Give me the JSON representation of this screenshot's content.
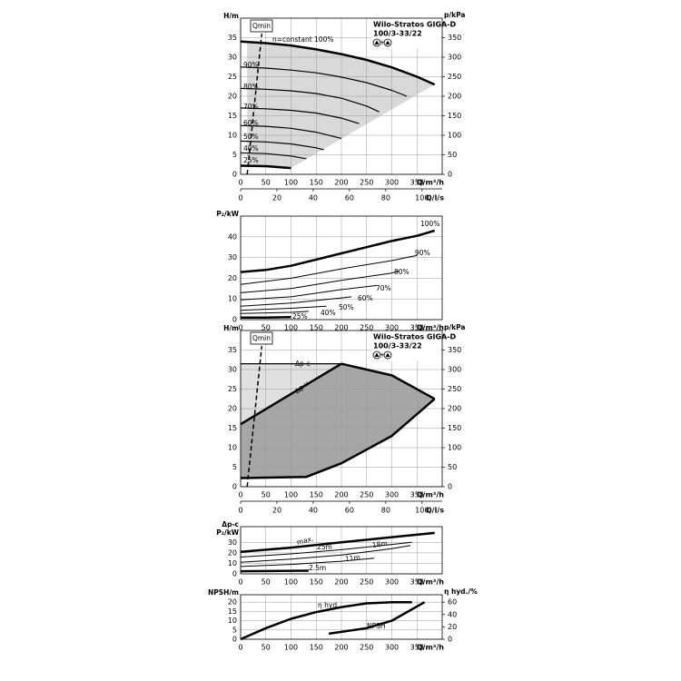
{
  "chart_data": [
    {
      "type": "line",
      "title": "Wilo-Stratos GIGA-D",
      "subtitle": "100/3-33/22",
      "y_labels": [
        "H/m"
      ],
      "y2_label": "p/kPa",
      "x_label": "Q/m³/h",
      "x2_label": "Q/l/s",
      "xlim": [
        0,
        400
      ],
      "xticks": [
        0,
        50,
        100,
        150,
        200,
        250,
        300,
        350
      ],
      "ylim": [
        0,
        40
      ],
      "yticks": [
        0,
        5,
        10,
        15,
        20,
        25,
        30,
        35
      ],
      "y2lim": [
        0,
        400
      ],
      "y2ticks": [
        0,
        50,
        100,
        150,
        200,
        250,
        300,
        350
      ],
      "x2lim": [
        0,
        111.1
      ],
      "x2ticks": [
        0,
        20,
        40,
        60,
        80,
        100
      ],
      "grid": true,
      "areas": [
        {
          "color": "#d9d9d9",
          "x": [
            13,
            100,
            200,
            300,
            385,
            100,
            13
          ],
          "values": [
            34,
            33,
            30.8,
            27.4,
            23,
            1.6,
            2.2
          ]
        }
      ],
      "series": [
        {
          "name": "n=constant 100%",
          "color": "#000000",
          "width": 2.5,
          "x": [
            0,
            50,
            100,
            150,
            200,
            250,
            300,
            350,
            385
          ],
          "values": [
            34,
            33.6,
            33,
            32,
            30.8,
            29.3,
            27.4,
            25,
            23
          ]
        },
        {
          "name": "90%",
          "color": "#000000",
          "width": 1.2,
          "x": [
            0,
            50,
            100,
            150,
            200,
            250,
            300,
            330
          ],
          "values": [
            27.5,
            27.2,
            26.7,
            26,
            24.9,
            23.5,
            21.5,
            20
          ]
        },
        {
          "name": "80%",
          "color": "#000000",
          "width": 1.2,
          "x": [
            0,
            50,
            100,
            150,
            200,
            250,
            275
          ],
          "values": [
            22,
            21.8,
            21.4,
            20.7,
            19.5,
            17.5,
            16
          ]
        },
        {
          "name": "70%",
          "color": "#000000",
          "width": 1.2,
          "x": [
            0,
            50,
            100,
            150,
            200,
            235
          ],
          "values": [
            17,
            16.8,
            16.4,
            15.7,
            14.4,
            13
          ]
        },
        {
          "name": "60%",
          "color": "#000000",
          "width": 1.2,
          "x": [
            0,
            50,
            100,
            150,
            200
          ],
          "values": [
            12.5,
            12.3,
            11.8,
            10.8,
            9.2
          ]
        },
        {
          "name": "50%",
          "color": "#000000",
          "width": 1.2,
          "x": [
            0,
            50,
            100,
            150,
            165
          ],
          "values": [
            8.5,
            8.3,
            7.8,
            6.8,
            6.3
          ]
        },
        {
          "name": "40%",
          "color": "#000000",
          "width": 1.2,
          "x": [
            0,
            50,
            100,
            130
          ],
          "values": [
            5.5,
            5.3,
            4.7,
            4
          ]
        },
        {
          "name": "25%",
          "color": "#000000",
          "width": 2.5,
          "x": [
            0,
            50,
            100
          ],
          "values": [
            2.2,
            2.1,
            1.6
          ]
        },
        {
          "name": "Qmin",
          "color": "#000000",
          "width": 1.5,
          "dash": true,
          "x": [
            13,
            42
          ],
          "values": [
            0,
            36
          ]
        }
      ]
    },
    {
      "type": "line",
      "y_labels": [
        "P₂/kW"
      ],
      "x_label": "Q/m³/h",
      "xlim": [
        0,
        400
      ],
      "xticks": [
        0,
        50,
        100,
        150,
        200,
        250,
        300,
        350
      ],
      "ylim": [
        0,
        50
      ],
      "yticks": [
        0,
        10,
        20,
        30,
        40
      ],
      "grid": true,
      "series": [
        {
          "name": "100%",
          "color": "#000000",
          "width": 2.5,
          "x": [
            0,
            50,
            100,
            150,
            200,
            250,
            300,
            350,
            385
          ],
          "values": [
            23,
            24,
            26,
            29,
            32,
            35,
            38,
            40.5,
            43
          ]
        },
        {
          "name": "90%",
          "color": "#000000",
          "width": 1,
          "x": [
            0,
            100,
            200,
            300,
            350
          ],
          "values": [
            17,
            20,
            24.5,
            28.5,
            31
          ]
        },
        {
          "name": "80%",
          "color": "#000000",
          "width": 1,
          "x": [
            0,
            100,
            200,
            300,
            315
          ],
          "values": [
            13,
            15,
            19,
            22.5,
            23.5
          ]
        },
        {
          "name": "70%",
          "color": "#000000",
          "width": 1,
          "x": [
            0,
            100,
            200,
            270
          ],
          "values": [
            9.5,
            11,
            14.5,
            16.5
          ]
        },
        {
          "name": "60%",
          "color": "#000000",
          "width": 1,
          "x": [
            0,
            100,
            200,
            220
          ],
          "values": [
            6.5,
            8,
            10.5,
            11
          ]
        },
        {
          "name": "50%",
          "color": "#000000",
          "width": 1,
          "x": [
            0,
            100,
            170
          ],
          "values": [
            4.5,
            5.5,
            6.5
          ]
        },
        {
          "name": "40%",
          "color": "#000000",
          "width": 1,
          "x": [
            0,
            100,
            135
          ],
          "values": [
            3,
            3.5,
            4
          ]
        },
        {
          "name": "25%",
          "color": "#000000",
          "width": 2.5,
          "x": [
            0,
            50,
            100
          ],
          "values": [
            1,
            1,
            1.2
          ]
        }
      ]
    },
    {
      "type": "line",
      "title": "Wilo-Stratos GIGA-D",
      "subtitle": "100/3-33/22",
      "y_labels": [
        "H/m"
      ],
      "y2_label": "p/kPa",
      "x_label": "Q/m³/h",
      "x2_label": "Q/l/s",
      "xlim": [
        0,
        400
      ],
      "xticks": [
        0,
        50,
        100,
        150,
        200,
        250,
        300,
        350
      ],
      "ylim": [
        0,
        40
      ],
      "yticks": [
        0,
        5,
        10,
        15,
        20,
        25,
        30,
        35
      ],
      "y2lim": [
        0,
        400
      ],
      "y2ticks": [
        0,
        50,
        100,
        150,
        200,
        250,
        300,
        350
      ],
      "x2lim": [
        0,
        111.1
      ],
      "x2ticks": [
        0,
        20,
        40,
        60,
        80,
        100
      ],
      "grid": true,
      "areas": [
        {
          "color": "#e0e0e0",
          "x": [
            0,
            200,
            0
          ],
          "values": [
            31.5,
            31.5,
            16
          ]
        },
        {
          "color": "#a6a6a6",
          "x": [
            0,
            200,
            300,
            385,
            300,
            200,
            130,
            0
          ],
          "values": [
            16,
            31.5,
            28.5,
            22.5,
            13,
            6,
            2.5,
            2.2
          ]
        }
      ],
      "series": [
        {
          "name": "Δp-c",
          "color": "#000000",
          "width": 1.2,
          "x": [
            0,
            200
          ],
          "values": [
            31.5,
            31.5
          ]
        },
        {
          "name": "Δp-v",
          "color": "#000000",
          "width": 2.5,
          "x": [
            0,
            200
          ],
          "values": [
            16,
            31.5
          ]
        },
        {
          "color": "#000000",
          "width": 2.5,
          "x": [
            200,
            300,
            385
          ],
          "values": [
            31.5,
            28.5,
            22.5
          ]
        },
        {
          "color": "#000000",
          "width": 2.5,
          "x": [
            385,
            300,
            200,
            130,
            0
          ],
          "values": [
            22.5,
            13,
            6,
            2.5,
            2.2
          ]
        },
        {
          "name": "Qmin",
          "color": "#000000",
          "width": 1.5,
          "dash": true,
          "x": [
            13,
            42
          ],
          "values": [
            0,
            36
          ]
        }
      ]
    },
    {
      "type": "line",
      "y_labels": [
        "Δp-c",
        "P₂/kW"
      ],
      "x_label": "Q/m³/h",
      "xlim": [
        0,
        400
      ],
      "xticks": [
        0,
        50,
        100,
        150,
        200,
        250,
        300,
        350
      ],
      "ylim": [
        0,
        45
      ],
      "yticks": [
        0,
        10,
        20,
        30
      ],
      "grid": true,
      "series": [
        {
          "name": "max.",
          "color": "#000000",
          "width": 2.5,
          "x": [
            0,
            100,
            200,
            300,
            385
          ],
          "values": [
            21,
            25,
            30,
            35,
            39
          ]
        },
        {
          "name": "25m",
          "color": "#000000",
          "width": 1,
          "x": [
            0,
            100,
            200,
            300,
            340
          ],
          "values": [
            16,
            19,
            23,
            28,
            30
          ]
        },
        {
          "name": "18m",
          "color": "#000000",
          "width": 1,
          "x": [
            0,
            100,
            200,
            300,
            337
          ],
          "values": [
            11,
            14,
            18,
            24,
            27
          ]
        },
        {
          "name": "11m",
          "color": "#000000",
          "width": 1,
          "x": [
            0,
            100,
            200,
            265
          ],
          "values": [
            7,
            9,
            12,
            15
          ]
        },
        {
          "name": "2.5m",
          "color": "#000000",
          "width": 2.5,
          "x": [
            0,
            135
          ],
          "values": [
            2.5,
            3
          ]
        }
      ]
    },
    {
      "type": "line",
      "y_labels": [
        "NPSH/m"
      ],
      "y2_label": "η hyd./%",
      "x_label": "Q/m³/h",
      "xlim": [
        0,
        400
      ],
      "xticks": [
        0,
        50,
        100,
        150,
        200,
        250,
        300,
        350
      ],
      "ylim": [
        0,
        24
      ],
      "yticks": [
        0,
        5,
        10,
        15,
        20
      ],
      "y2lim": [
        0,
        72
      ],
      "y2ticks": [
        0,
        20,
        40,
        60
      ],
      "grid": true,
      "series": [
        {
          "name": "η hyd.",
          "axis": "y2",
          "color": "#000000",
          "width": 2.5,
          "x": [
            0,
            50,
            100,
            150,
            200,
            250,
            300,
            340
          ],
          "values": [
            0,
            18,
            33,
            44,
            52,
            58,
            60,
            60
          ]
        },
        {
          "name": "NPSH",
          "color": "#000000",
          "width": 2.5,
          "x": [
            175,
            250,
            300,
            365
          ],
          "values": [
            3,
            6,
            10,
            20
          ]
        }
      ]
    }
  ]
}
